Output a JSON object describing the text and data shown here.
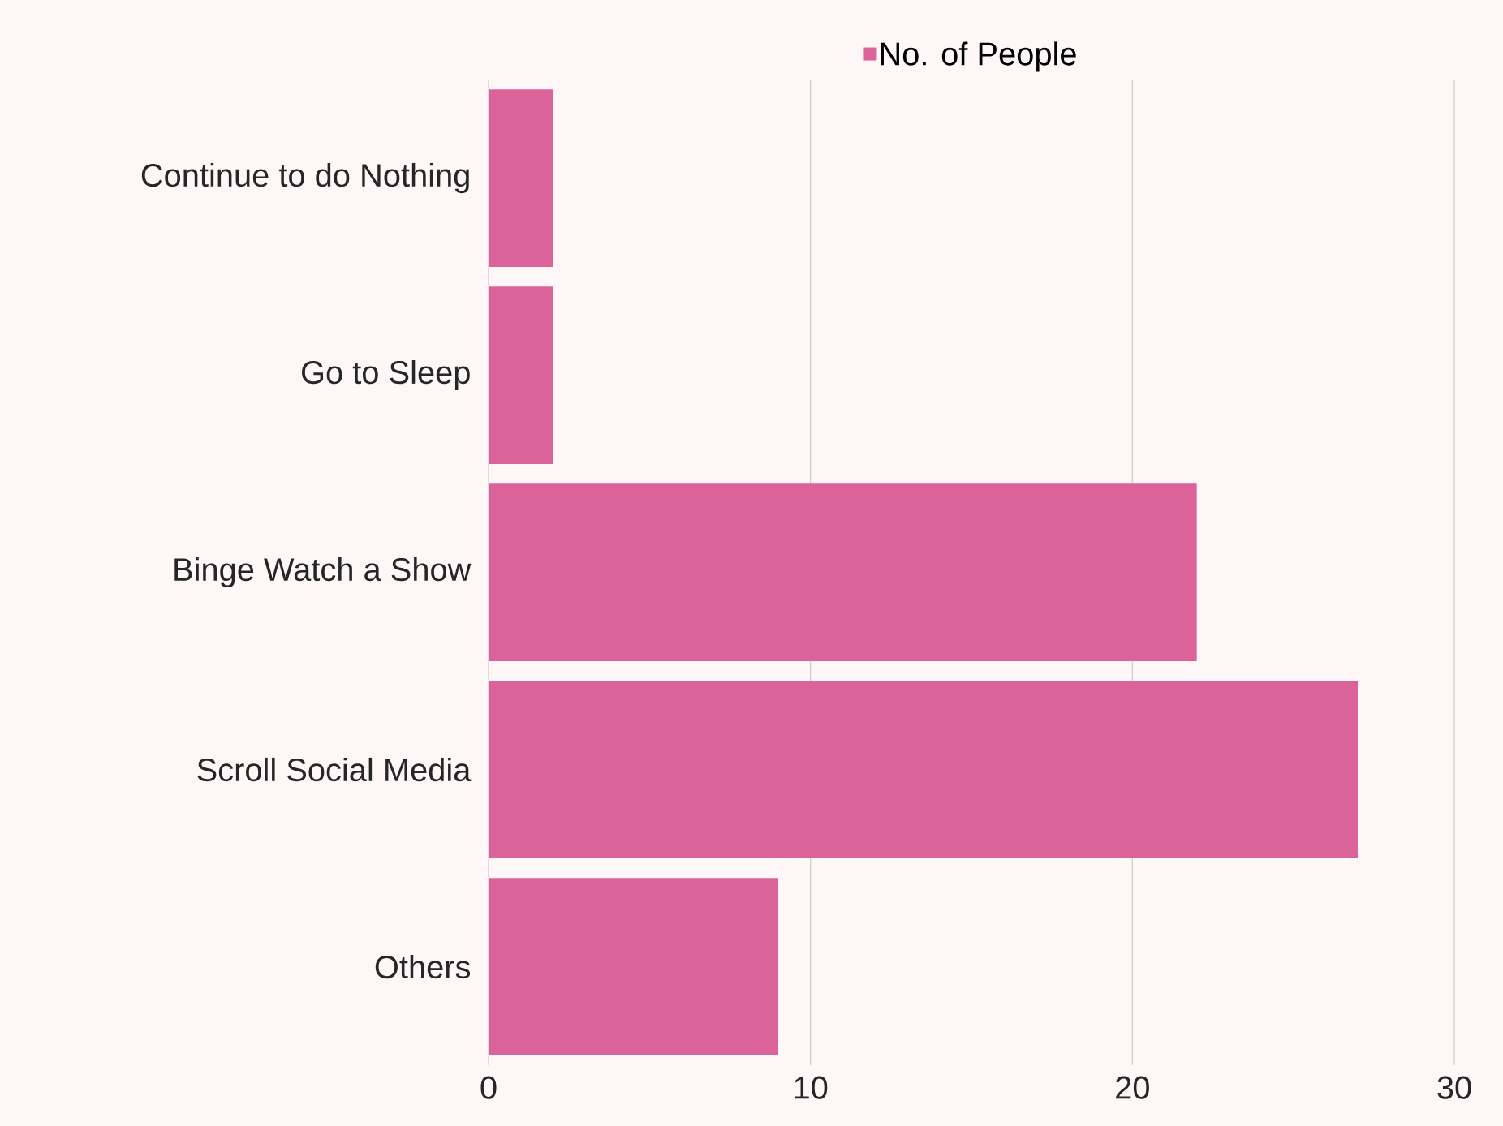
{
  "chart_data": {
    "type": "bar",
    "orientation": "horizontal",
    "categories": [
      "Continue to do Nothing",
      "Go to Sleep",
      "Binge Watch a Show",
      "Scroll Social Media",
      "Others"
    ],
    "series": [
      {
        "name": "No. of People",
        "color": "#db6399",
        "values": [
          2,
          2,
          22,
          27,
          9
        ]
      }
    ],
    "xlim": [
      0,
      30
    ],
    "xticks": [
      0,
      10,
      20,
      30
    ],
    "grid": "x",
    "legend": "top"
  }
}
